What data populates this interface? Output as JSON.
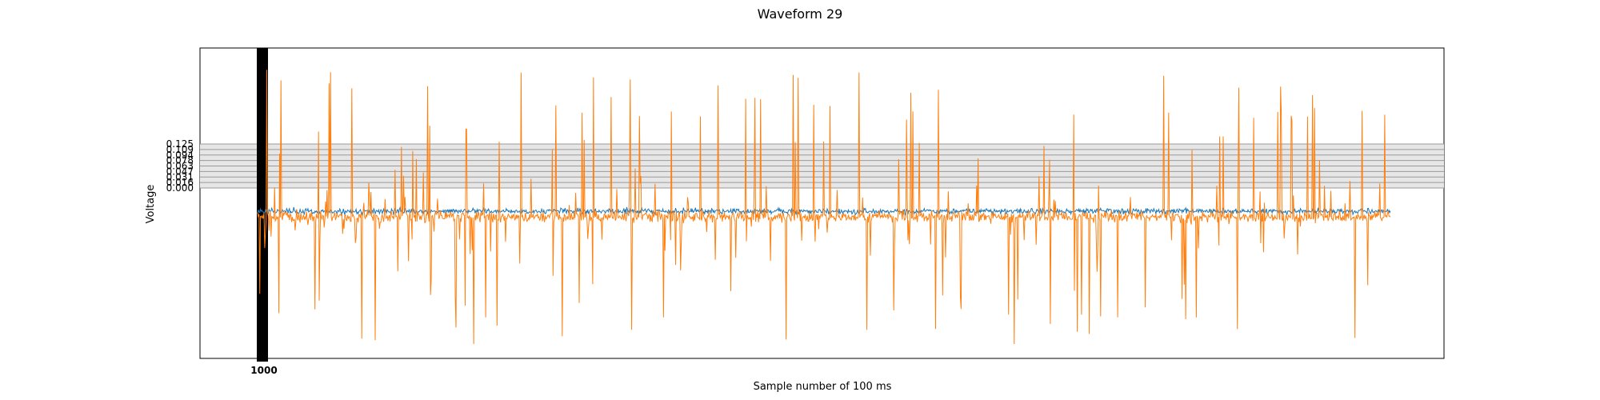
{
  "chart_data": {
    "type": "line",
    "title": "Waveform 29",
    "xlabel": "Sample number of 100 ms",
    "ylabel": "Voltage",
    "y_tick_labels": [
      "0.000",
      "0.016",
      "0.031",
      "0.047",
      "0.063",
      "0.078",
      "0.094",
      "0.109",
      "0.125"
    ],
    "x_tick_labels_note": "dense overlapping x tick labels near origin",
    "grid": true,
    "series": [
      {
        "color": "#1f77b4",
        "description": "low-amplitude baseline noise around 0"
      },
      {
        "color": "#ff7f0e",
        "description": "noisy signal with tall positive and negative spikes"
      }
    ],
    "sample_count": 1600
  }
}
